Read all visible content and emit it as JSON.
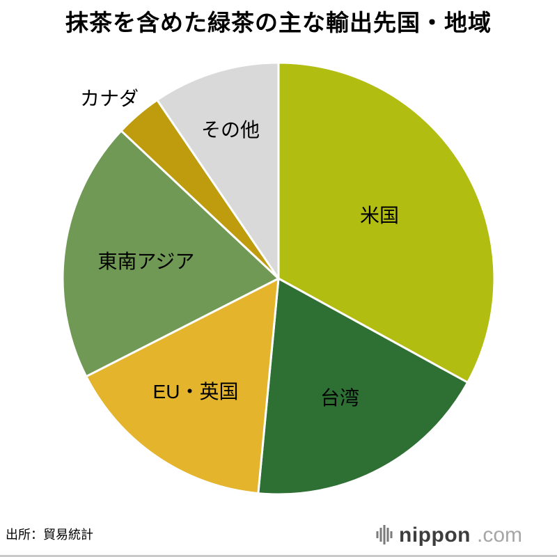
{
  "page": {
    "title": "抹茶を含めた緑茶の主な輸出先国・地域",
    "source": "出所：貿易統計",
    "logo": {
      "brand": "nippon",
      "tld": ".com",
      "icon": "soundwave-bars-icon"
    }
  },
  "chart_data": {
    "type": "pie",
    "title": "抹茶を含めた緑茶の主な輸出先国・地域",
    "source": "出所：貿易統計",
    "unit": "% share (estimated from slice angles; no numeric labels shown in chart)",
    "start_angle_deg": 0,
    "direction": "clockwise",
    "legend": "labels placed on/next to slices",
    "slices": [
      {
        "key": "usa",
        "label": "米国",
        "value": 33,
        "color": "#b2bd12"
      },
      {
        "key": "taiwan",
        "label": "台湾",
        "value": 18.5,
        "color": "#2e6f33"
      },
      {
        "key": "eu-uk",
        "label": "EU・英国",
        "value": 16,
        "color": "#e3b42c"
      },
      {
        "key": "southeast-asia",
        "label": "東南アジア",
        "value": 19.5,
        "color": "#6f9954"
      },
      {
        "key": "canada",
        "label": "カナダ",
        "value": 3.5,
        "color": "#bf9c0d"
      },
      {
        "key": "others",
        "label": "その他",
        "value": 9.5,
        "color": "#d9d9d9"
      }
    ]
  }
}
